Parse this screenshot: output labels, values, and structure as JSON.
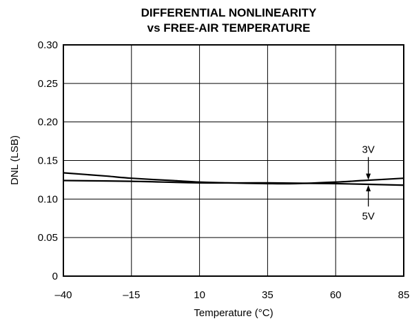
{
  "chart_data": {
    "type": "line",
    "title": "DIFFERENTIAL NONLINEARITY",
    "subtitle": "vs FREE-AIR TEMPERATURE",
    "xlabel": "Temperature (°C)",
    "ylabel": "DNL (LSB)",
    "xlim": [
      -40,
      85
    ],
    "ylim": [
      0,
      0.3
    ],
    "x_ticks": [
      {
        "value": -40,
        "label": "–40"
      },
      {
        "value": -15,
        "label": "–15"
      },
      {
        "value": 10,
        "label": "10"
      },
      {
        "value": 35,
        "label": "35"
      },
      {
        "value": 60,
        "label": "60"
      },
      {
        "value": 85,
        "label": "85"
      }
    ],
    "y_ticks": [
      {
        "value": 0,
        "label": "0"
      },
      {
        "value": 0.05,
        "label": "0.05"
      },
      {
        "value": 0.1,
        "label": "0.10"
      },
      {
        "value": 0.15,
        "label": "0.15"
      },
      {
        "value": 0.2,
        "label": "0.20"
      },
      {
        "value": 0.25,
        "label": "0.25"
      },
      {
        "value": 0.3,
        "label": "0.30"
      }
    ],
    "grid": true,
    "series": [
      {
        "name": "3V",
        "x": [
          -40,
          -25,
          -15,
          0,
          10,
          20,
          35,
          45,
          60,
          70,
          85
        ],
        "y": [
          0.134,
          0.13,
          0.127,
          0.124,
          0.122,
          0.121,
          0.12,
          0.12,
          0.122,
          0.124,
          0.127
        ]
      },
      {
        "name": "5V",
        "x": [
          -40,
          -15,
          10,
          35,
          60,
          85
        ],
        "y": [
          0.124,
          0.123,
          0.121,
          0.121,
          0.12,
          0.118
        ]
      }
    ],
    "annotations": [
      {
        "series": "3V",
        "text": "3V",
        "x": 72,
        "y": 0.124,
        "label_side": "above"
      },
      {
        "series": "5V",
        "text": "5V",
        "x": 72,
        "y": 0.119,
        "label_side": "below"
      }
    ],
    "line_color": "#000000"
  }
}
